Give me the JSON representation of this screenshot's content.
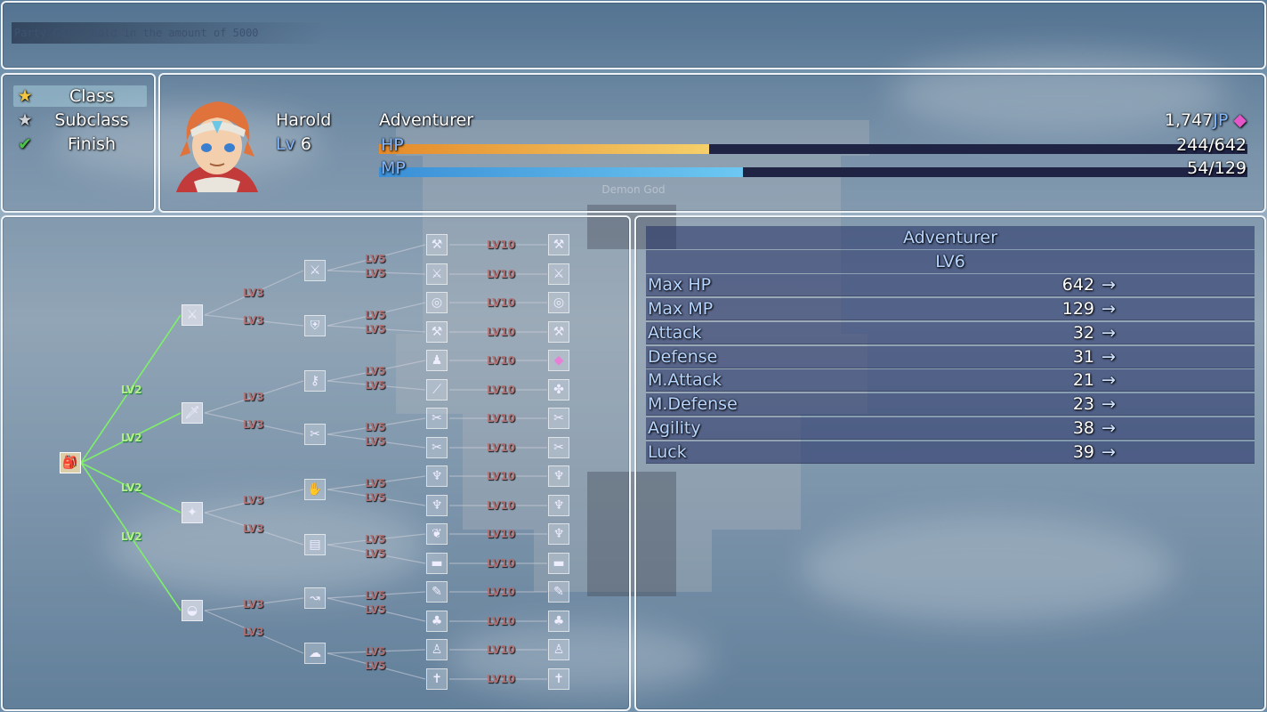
{
  "log_message": "Party Gains Gold in the amount of 5000",
  "commands": [
    {
      "label": "Class",
      "icon": "star-gold-icon",
      "selected": true
    },
    {
      "label": "Subclass",
      "icon": "star-silver-icon",
      "selected": false
    },
    {
      "label": "Finish",
      "icon": "checkmark-icon",
      "selected": false
    }
  ],
  "actor": {
    "name": "Harold",
    "level_label": "Lv",
    "level": "6",
    "class": "Adventurer",
    "jp": "1,747",
    "jp_unit": "JP",
    "hp_label": "HP",
    "hp": "244/642",
    "hp_current": 244,
    "hp_max": 642,
    "mp_label": "MP",
    "mp": "54/129",
    "mp_current": 54,
    "mp_max": 129,
    "colors": {
      "hp_from": "#e58a2a",
      "hp_to": "#f5d06a",
      "mp_from": "#3a8fd6",
      "mp_to": "#6cc8f2"
    }
  },
  "tree": {
    "labels": {
      "lv2": "LV2",
      "lv3": "LV3",
      "lv5": "LV5",
      "lv10": "LV10"
    }
  },
  "details": {
    "class": "Adventurer",
    "level": "LV6",
    "arrow": "→",
    "stats": [
      {
        "name": "Max HP",
        "value": "642"
      },
      {
        "name": "Max MP",
        "value": "129"
      },
      {
        "name": "Attack",
        "value": "32"
      },
      {
        "name": "Defense",
        "value": "31"
      },
      {
        "name": "M.Attack",
        "value": "21"
      },
      {
        "name": "M.Defense",
        "value": "23"
      },
      {
        "name": "Agility",
        "value": "38"
      },
      {
        "name": "Luck",
        "value": "39"
      }
    ]
  },
  "map_sign": "Demon God"
}
